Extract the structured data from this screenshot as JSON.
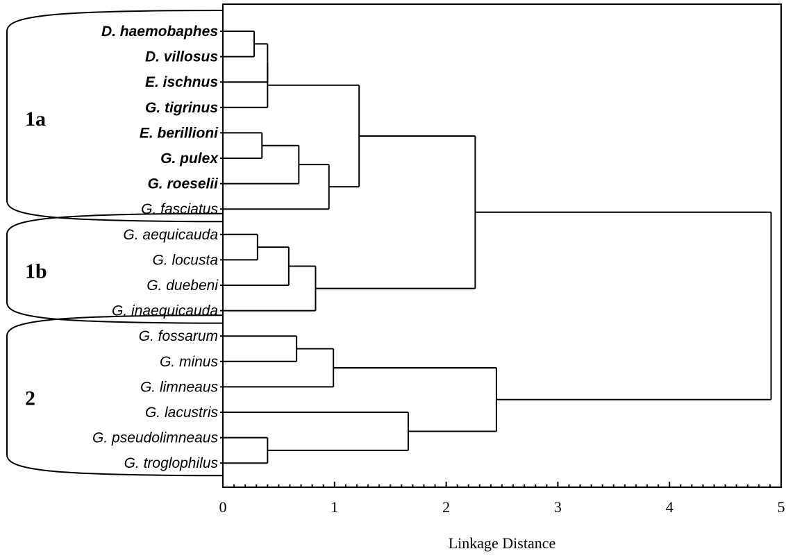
{
  "chart_data": {
    "type": "dendrogram",
    "xlabel": "Linkage Distance",
    "xlim": [
      0,
      5
    ],
    "x_ticks": [
      "0",
      "1",
      "2",
      "3",
      "4",
      "5"
    ],
    "leaves": [
      {
        "name": "D. haemobaphes",
        "bold": true
      },
      {
        "name": "D. villosus",
        "bold": true
      },
      {
        "name": "E. ischnus",
        "bold": true
      },
      {
        "name": "G. tigrinus",
        "bold": true
      },
      {
        "name": "E. berillioni",
        "bold": true
      },
      {
        "name": "G. pulex",
        "bold": true
      },
      {
        "name": "G. roeselii",
        "bold": true
      },
      {
        "name": "G. fasciatus",
        "bold": false
      },
      {
        "name": "G. aequicauda",
        "bold": false
      },
      {
        "name": "G. locusta",
        "bold": false
      },
      {
        "name": "G. duebeni",
        "bold": false
      },
      {
        "name": "G. inaequicauda",
        "bold": false
      },
      {
        "name": "G. fossarum",
        "bold": false
      },
      {
        "name": "G. minus",
        "bold": false
      },
      {
        "name": "G. limneaus",
        "bold": false
      },
      {
        "name": "G. lacustris",
        "bold": false
      },
      {
        "name": "G. pseudolimneaus",
        "bold": false
      },
      {
        "name": "G. troglophilus",
        "bold": false
      }
    ],
    "merges": [
      {
        "a": 0,
        "b": 1,
        "height": 0.28
      },
      {
        "a": 18,
        "b": 2,
        "height": 0.4
      },
      {
        "a": 19,
        "b": 3,
        "height": 0.4
      },
      {
        "a": 4,
        "b": 5,
        "height": 0.35
      },
      {
        "a": 21,
        "b": 6,
        "height": 0.68
      },
      {
        "a": 22,
        "b": 7,
        "height": 0.95
      },
      {
        "a": 20,
        "b": 23,
        "height": 1.22
      },
      {
        "a": 8,
        "b": 9,
        "height": 0.31
      },
      {
        "a": 25,
        "b": 10,
        "height": 0.59
      },
      {
        "a": 26,
        "b": 11,
        "height": 0.83
      },
      {
        "a": 24,
        "b": 27,
        "height": 2.26
      },
      {
        "a": 12,
        "b": 13,
        "height": 0.66
      },
      {
        "a": 29,
        "b": 14,
        "height": 0.99
      },
      {
        "a": 16,
        "b": 17,
        "height": 0.4
      },
      {
        "a": 15,
        "b": 31,
        "height": 1.66
      },
      {
        "a": 30,
        "b": 32,
        "height": 2.45
      },
      {
        "a": 28,
        "b": 33,
        "height": 4.91
      }
    ],
    "groups": [
      {
        "label": "1a",
        "from": 0,
        "to": 7
      },
      {
        "label": "1b",
        "from": 8,
        "to": 11
      },
      {
        "label": "2",
        "from": 12,
        "to": 17
      }
    ],
    "grid": false
  }
}
